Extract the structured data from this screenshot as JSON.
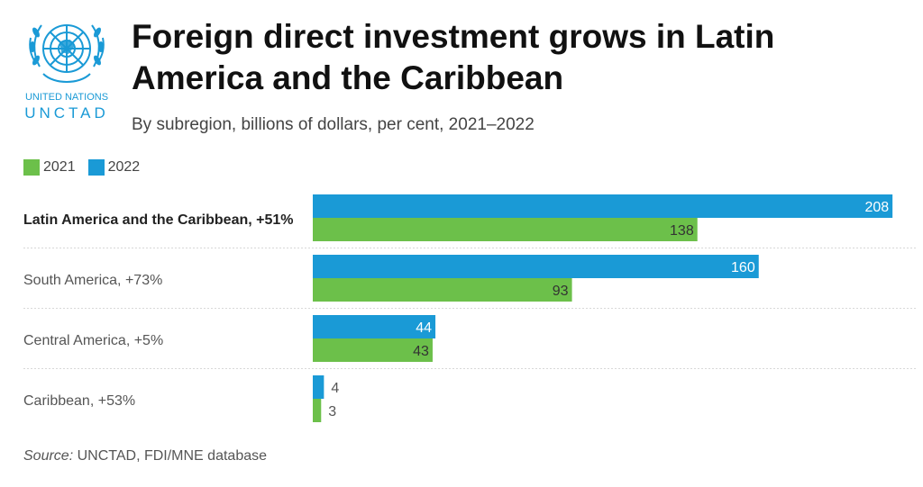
{
  "logo": {
    "org_line": "UNITED NATIONS",
    "org_name": "UNCTAD",
    "color": "#1a9ad6"
  },
  "header": {
    "title": "Foreign direct investment grows in Latin America and the Caribbean",
    "subtitle": "By subregion, billions of dollars, per cent, 2021–2022"
  },
  "chart_data": {
    "type": "bar",
    "orientation": "horizontal",
    "title": "Foreign direct investment grows in Latin America and the Caribbean",
    "subtitle": "By subregion, billions of dollars, per cent, 2021–2022",
    "categories": [
      "Latin America and the Caribbean, +51%",
      "South America, +73%",
      "Central America, +5%",
      "Caribbean, +53%"
    ],
    "series": [
      {
        "name": "2022",
        "color": "#1a9ad6",
        "values": [
          208,
          160,
          44,
          4
        ]
      },
      {
        "name": "2021",
        "color": "#6cc04a",
        "values": [
          138,
          93,
          43,
          3
        ]
      }
    ],
    "legend": [
      "2021",
      "2022"
    ],
    "legend_position": "top-left",
    "xlim": [
      0,
      217
    ],
    "xlabel": "",
    "ylabel": "",
    "grid": false
  },
  "source": {
    "label": "Source:",
    "text": " UNCTAD, FDI/MNE database"
  }
}
